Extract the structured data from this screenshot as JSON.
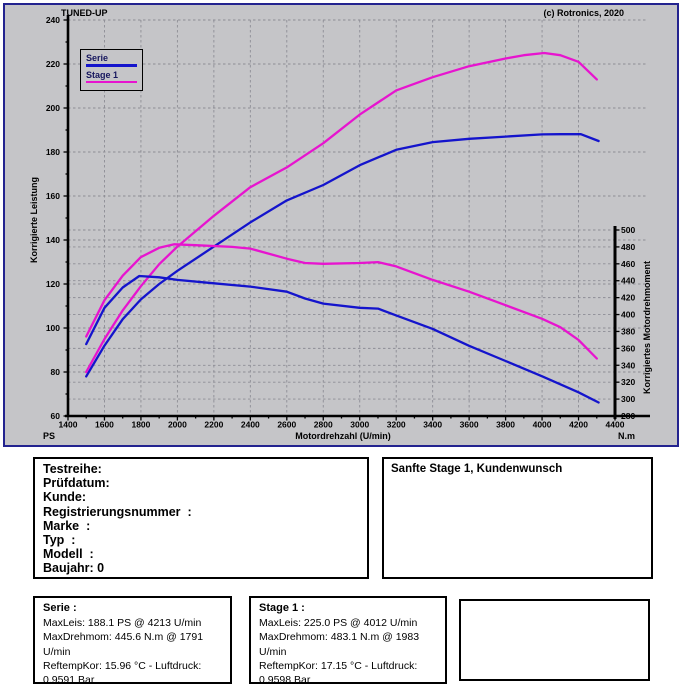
{
  "window": {
    "title": "TUNED-UP",
    "copyright": "(c) Rotronics, 2020"
  },
  "legend": [
    {
      "label": "Serie",
      "color": "#1414cc"
    },
    {
      "label": "Stage 1",
      "color": "#e714cf"
    }
  ],
  "colors": {
    "panel_background": "#c5c5c8",
    "window_border": "#23238f",
    "gridline": "#8d8d95",
    "serie": "#1414cc",
    "stage1": "#e714cf"
  },
  "chart_data": {
    "type": "line",
    "x_axis": {
      "label": "Motordrehzahl (U/min)",
      "min": 1400,
      "max": 4400,
      "step": 200
    },
    "y_left": {
      "label": "Korrigierte Leistung",
      "unit": "PS",
      "min": 60,
      "max": 240,
      "step": 20
    },
    "y_right": {
      "label": "Korrigiertes Motordrehmoment",
      "unit": "N.m",
      "min": 280,
      "max": 500,
      "step": 20
    },
    "grid": true,
    "legend_position": "top-left",
    "series": [
      {
        "name": "Serie Leistung (PS)",
        "axis": "left",
        "color": "#1414cc",
        "points": [
          [
            1500,
            78
          ],
          [
            1600,
            92
          ],
          [
            1700,
            104
          ],
          [
            1800,
            113
          ],
          [
            1900,
            120
          ],
          [
            2000,
            126
          ],
          [
            2200,
            137
          ],
          [
            2400,
            148
          ],
          [
            2600,
            158
          ],
          [
            2800,
            165
          ],
          [
            3000,
            174
          ],
          [
            3200,
            181
          ],
          [
            3400,
            184.5
          ],
          [
            3600,
            186
          ],
          [
            3800,
            187
          ],
          [
            4000,
            188
          ],
          [
            4100,
            188.1
          ],
          [
            4213,
            188.1
          ],
          [
            4310,
            185
          ]
        ]
      },
      {
        "name": "Stage 1 Leistung (PS)",
        "axis": "left",
        "color": "#e714cf",
        "points": [
          [
            1500,
            80
          ],
          [
            1600,
            95
          ],
          [
            1700,
            108
          ],
          [
            1800,
            119
          ],
          [
            1900,
            129
          ],
          [
            2000,
            137
          ],
          [
            2200,
            151
          ],
          [
            2400,
            164
          ],
          [
            2600,
            173
          ],
          [
            2800,
            184
          ],
          [
            3000,
            197
          ],
          [
            3200,
            208
          ],
          [
            3300,
            211
          ],
          [
            3400,
            214
          ],
          [
            3600,
            219
          ],
          [
            3800,
            222.5
          ],
          [
            3900,
            224
          ],
          [
            4012,
            225
          ],
          [
            4100,
            224
          ],
          [
            4200,
            221
          ],
          [
            4300,
            213
          ]
        ]
      },
      {
        "name": "Serie Drehmoment (N.m)",
        "axis": "right",
        "color": "#1414cc",
        "points": [
          [
            1500,
            365
          ],
          [
            1600,
            408
          ],
          [
            1700,
            432
          ],
          [
            1791,
            445.6
          ],
          [
            1900,
            444
          ],
          [
            2000,
            441
          ],
          [
            2200,
            437
          ],
          [
            2400,
            433
          ],
          [
            2600,
            427
          ],
          [
            2700,
            419
          ],
          [
            2800,
            413
          ],
          [
            3000,
            408
          ],
          [
            3100,
            407
          ],
          [
            3200,
            399
          ],
          [
            3400,
            383
          ],
          [
            3600,
            363
          ],
          [
            3800,
            345
          ],
          [
            4000,
            327
          ],
          [
            4200,
            308
          ],
          [
            4310,
            296
          ]
        ]
      },
      {
        "name": "Stage 1 Drehmoment (N.m)",
        "axis": "right",
        "color": "#e714cf",
        "points": [
          [
            1500,
            374
          ],
          [
            1600,
            417
          ],
          [
            1700,
            446
          ],
          [
            1800,
            468
          ],
          [
            1900,
            479
          ],
          [
            1983,
            483.1
          ],
          [
            2100,
            482
          ],
          [
            2300,
            480
          ],
          [
            2400,
            478
          ],
          [
            2600,
            466
          ],
          [
            2700,
            461
          ],
          [
            2800,
            460
          ],
          [
            3000,
            461
          ],
          [
            3100,
            462
          ],
          [
            3200,
            457
          ],
          [
            3400,
            441
          ],
          [
            3600,
            427
          ],
          [
            3800,
            411
          ],
          [
            4000,
            395
          ],
          [
            4100,
            385
          ],
          [
            4200,
            370
          ],
          [
            4300,
            348
          ]
        ]
      }
    ]
  },
  "boxes": {
    "vehicle": {
      "lines": [
        "Testreihe:",
        "Prüfdatum:",
        "Kunde:",
        "Registrierungsnummer  :",
        "Marke  :",
        "Typ  :",
        "Modell  :",
        "Baujahr: 0"
      ]
    },
    "note": "Sanfte Stage 1, Kundenwunsch",
    "serie": {
      "title": "Serie :",
      "max_power": "MaxLeis: 188.1 PS @ 4213 U/min",
      "max_torque": "MaxDrehmom: 445.6 N.m @ 1791 U/min",
      "conditions": "ReftempKor: 15.96 °C - Luftdruck: 0.9591 Bar"
    },
    "stage1": {
      "title": "Stage 1 :",
      "max_power": "MaxLeis: 225.0 PS @ 4012 U/min",
      "max_torque": "MaxDrehmom: 483.1 N.m @ 1983 U/min",
      "conditions": "ReftempKor: 17.15 °C - Luftdruck: 0.9598 Bar"
    }
  }
}
